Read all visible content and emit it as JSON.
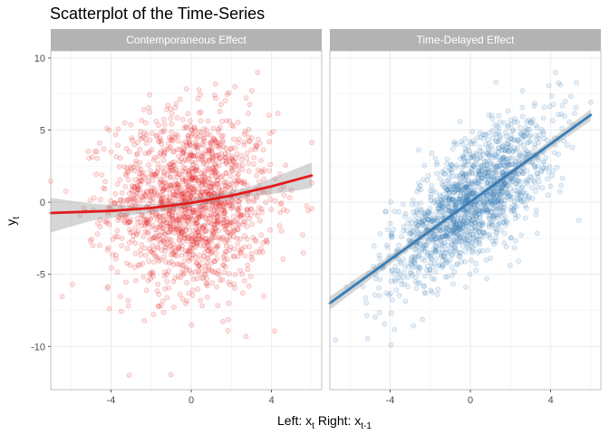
{
  "chart_data": {
    "type": "scatter",
    "title": "Scatterplot of the Time-Series",
    "xlabel": "Left: x_t Right: x_{t-1}",
    "xlabel_parts": {
      "pre1": "Left: x",
      "sub1": "t",
      "mid": " Right: x",
      "sub2": "t-1"
    },
    "ylabel": "y_t",
    "ylabel_parts": {
      "base": "y",
      "sub": "t"
    },
    "xlim": [
      -7.0,
      6.5
    ],
    "ylim": [
      -13.0,
      10.5
    ],
    "x_ticks": [
      -4,
      0,
      4
    ],
    "x_tick_labels": [
      "-4",
      "0",
      "4"
    ],
    "y_ticks": [
      10,
      5,
      0,
      -5,
      -10
    ],
    "y_tick_labels": [
      "10",
      "5",
      "0",
      "-5",
      "-10"
    ],
    "grid": true,
    "panels": [
      {
        "strip": "Contemporaneous Effect",
        "point_color": "#E41A1C",
        "line_color": "#E41A1C",
        "smooth": "loess",
        "points_summary": {
          "n": 1600,
          "x_mean": 0.0,
          "x_sd": 2.0,
          "y_mean": 0.0,
          "y_sd": 3.1,
          "x_range": [
            -7.0,
            6.0
          ],
          "y_range": [
            -12.0,
            9.0
          ]
        },
        "fit_line": [
          {
            "x": -7.0,
            "y": -0.75
          },
          {
            "x": -4.0,
            "y": -0.6
          },
          {
            "x": -2.0,
            "y": -0.4
          },
          {
            "x": 0.0,
            "y": -0.05
          },
          {
            "x": 2.0,
            "y": 0.45
          },
          {
            "x": 4.0,
            "y": 1.1
          },
          {
            "x": 6.0,
            "y": 1.85
          }
        ],
        "band": [
          {
            "x": -7.0,
            "lo": -2.1,
            "hi": 0.3
          },
          {
            "x": -5.0,
            "lo": -1.3,
            "hi": -0.1
          },
          {
            "x": -3.0,
            "lo": -0.9,
            "hi": -0.25
          },
          {
            "x": -1.0,
            "lo": -0.55,
            "hi": -0.05
          },
          {
            "x": 1.0,
            "lo": -0.05,
            "hi": 0.45
          },
          {
            "x": 3.0,
            "lo": 0.4,
            "hi": 1.1
          },
          {
            "x": 5.0,
            "lo": 0.75,
            "hi": 2.2
          },
          {
            "x": 6.0,
            "lo": 1.0,
            "hi": 2.75
          }
        ]
      },
      {
        "strip": "Time-Delayed Effect",
        "point_color": "#377EB8",
        "line_color": "#377EB8",
        "smooth": "lm",
        "points_summary": {
          "n": 1600,
          "x_mean": 0.0,
          "x_sd": 2.0,
          "slope": 1.0,
          "residual_sd": 2.0,
          "x_range": [
            -7.0,
            6.0
          ],
          "y_range": [
            -12.0,
            9.0
          ]
        },
        "fit_line": [
          {
            "x": -7.0,
            "y": -7.0
          },
          {
            "x": 6.0,
            "y": 6.05
          }
        ],
        "band": [
          {
            "x": -7.0,
            "lo": -7.45,
            "hi": -6.55
          },
          {
            "x": 0.0,
            "lo": -0.12,
            "hi": 0.12
          },
          {
            "x": 6.0,
            "lo": 5.65,
            "hi": 6.45
          }
        ]
      }
    ]
  }
}
